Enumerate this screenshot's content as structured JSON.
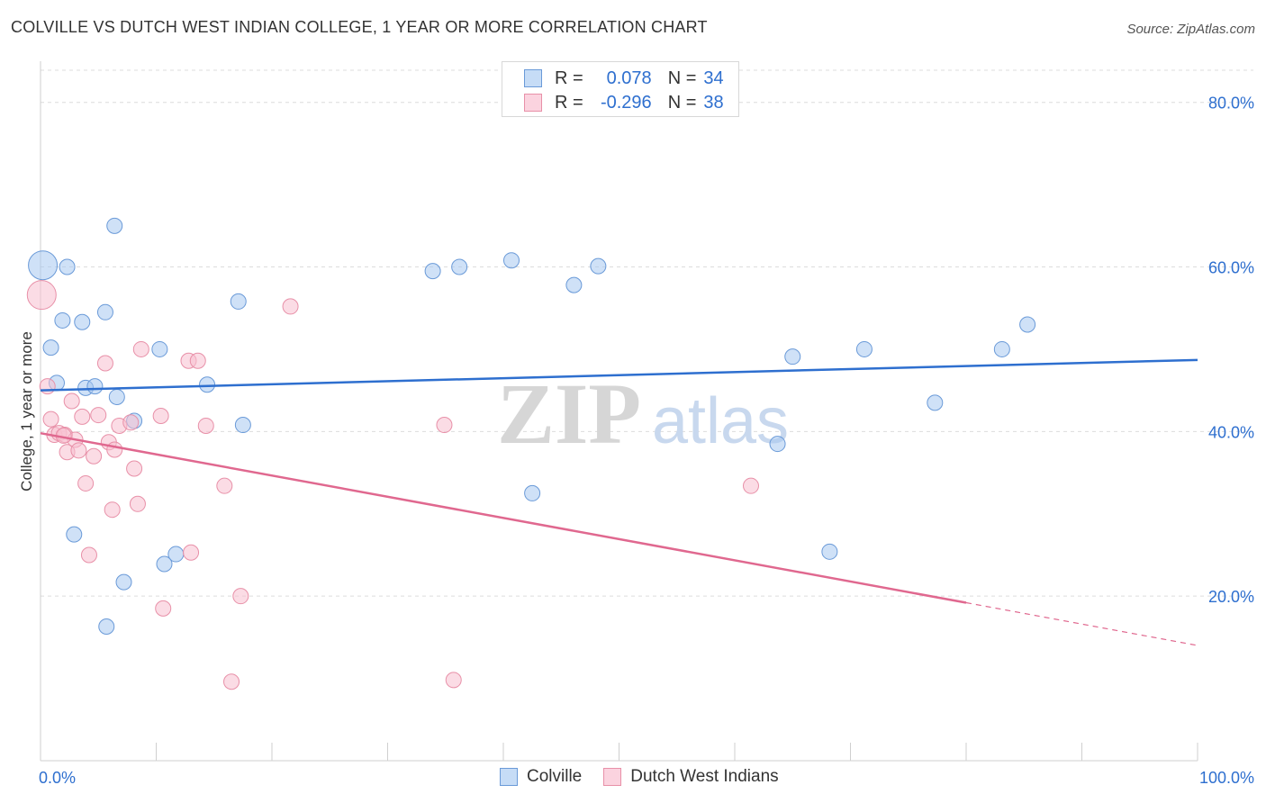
{
  "title": "COLVILLE VS DUTCH WEST INDIAN COLLEGE, 1 YEAR OR MORE CORRELATION CHART",
  "source": "Source: ZipAtlas.com",
  "watermark": {
    "zip": "ZIP",
    "atlas": "atlas"
  },
  "legend": {
    "rows": [
      {
        "r_label": "R =",
        "r_value": "0.078",
        "n_label": "N =",
        "n_value": "34"
      },
      {
        "r_label": "R =",
        "r_value": "-0.296",
        "n_label": "N =",
        "n_value": "38"
      }
    ]
  },
  "chart_data": {
    "type": "scatter",
    "title": "COLVILLE VS DUTCH WEST INDIAN COLLEGE, 1 YEAR OR MORE CORRELATION CHART",
    "xlabel": "",
    "ylabel": "College, 1 year or more",
    "xlim": [
      0,
      100
    ],
    "ylim": [
      0,
      85
    ],
    "x_tick_labels": [
      "0.0%",
      "100.0%"
    ],
    "y_ticks": [
      20,
      40,
      60,
      80
    ],
    "y_tick_labels": [
      "20.0%",
      "40.0%",
      "60.0%",
      "80.0%"
    ],
    "grid": true,
    "legend_position": "top-center",
    "series": [
      {
        "name": "Colville",
        "color": "#a8c8f0",
        "stroke": "#6a9ad8",
        "line_color": "#2e6fcf",
        "r": 0.078,
        "n": 34,
        "trend": {
          "x": [
            0,
            100
          ],
          "y": [
            45.0,
            48.7
          ]
        },
        "points": [
          {
            "x": 0.2,
            "y": 60.2,
            "big": true
          },
          {
            "x": 2.3,
            "y": 60.0
          },
          {
            "x": 6.4,
            "y": 65.0
          },
          {
            "x": 1.9,
            "y": 53.5
          },
          {
            "x": 3.6,
            "y": 53.3
          },
          {
            "x": 5.6,
            "y": 54.5
          },
          {
            "x": 0.9,
            "y": 50.2
          },
          {
            "x": 1.4,
            "y": 45.9
          },
          {
            "x": 3.9,
            "y": 45.3
          },
          {
            "x": 4.7,
            "y": 45.5
          },
          {
            "x": 6.6,
            "y": 44.2
          },
          {
            "x": 8.1,
            "y": 41.3
          },
          {
            "x": 10.3,
            "y": 50.0
          },
          {
            "x": 14.4,
            "y": 45.7
          },
          {
            "x": 17.1,
            "y": 55.8
          },
          {
            "x": 17.5,
            "y": 40.8
          },
          {
            "x": 2.9,
            "y": 27.5
          },
          {
            "x": 11.7,
            "y": 25.1
          },
          {
            "x": 10.7,
            "y": 23.9
          },
          {
            "x": 7.2,
            "y": 21.7
          },
          {
            "x": 5.7,
            "y": 16.3
          },
          {
            "x": 33.9,
            "y": 59.5
          },
          {
            "x": 36.2,
            "y": 60.0
          },
          {
            "x": 40.7,
            "y": 60.8
          },
          {
            "x": 46.1,
            "y": 57.8
          },
          {
            "x": 48.2,
            "y": 60.1
          },
          {
            "x": 42.5,
            "y": 32.5
          },
          {
            "x": 65.0,
            "y": 49.1
          },
          {
            "x": 71.2,
            "y": 50.0
          },
          {
            "x": 63.7,
            "y": 38.5
          },
          {
            "x": 68.2,
            "y": 25.4
          },
          {
            "x": 77.3,
            "y": 43.5
          },
          {
            "x": 83.1,
            "y": 50.0
          },
          {
            "x": 85.3,
            "y": 53.0
          }
        ]
      },
      {
        "name": "Dutch West Indians",
        "color": "#f8c0d0",
        "stroke": "#e890a8",
        "line_color": "#e0688f",
        "r": -0.296,
        "n": 38,
        "trend": {
          "x": [
            0,
            80
          ],
          "y": [
            39.8,
            19.2
          ]
        },
        "trend_dashed": {
          "x": [
            80,
            100
          ],
          "y": [
            19.2,
            14.0
          ]
        },
        "points": [
          {
            "x": 0.1,
            "y": 56.6,
            "big": true
          },
          {
            "x": 0.6,
            "y": 45.5
          },
          {
            "x": 0.9,
            "y": 41.5
          },
          {
            "x": 1.2,
            "y": 39.6
          },
          {
            "x": 1.6,
            "y": 39.8
          },
          {
            "x": 2.1,
            "y": 39.6
          },
          {
            "x": 2.3,
            "y": 37.5
          },
          {
            "x": 2.7,
            "y": 43.7
          },
          {
            "x": 3.0,
            "y": 39.0
          },
          {
            "x": 3.3,
            "y": 37.7
          },
          {
            "x": 3.6,
            "y": 41.8
          },
          {
            "x": 3.9,
            "y": 33.7
          },
          {
            "x": 4.2,
            "y": 25.0
          },
          {
            "x": 4.6,
            "y": 37.0
          },
          {
            "x": 5.0,
            "y": 42.0
          },
          {
            "x": 5.6,
            "y": 48.3
          },
          {
            "x": 5.9,
            "y": 38.7
          },
          {
            "x": 6.2,
            "y": 30.5
          },
          {
            "x": 6.4,
            "y": 37.8
          },
          {
            "x": 6.8,
            "y": 40.7
          },
          {
            "x": 7.8,
            "y": 41.1
          },
          {
            "x": 8.1,
            "y": 35.5
          },
          {
            "x": 8.4,
            "y": 31.2
          },
          {
            "x": 8.7,
            "y": 50.0
          },
          {
            "x": 10.4,
            "y": 41.9
          },
          {
            "x": 10.6,
            "y": 18.5
          },
          {
            "x": 12.8,
            "y": 48.6
          },
          {
            "x": 13.0,
            "y": 25.3
          },
          {
            "x": 13.6,
            "y": 48.6
          },
          {
            "x": 14.3,
            "y": 40.7
          },
          {
            "x": 15.9,
            "y": 33.4
          },
          {
            "x": 16.5,
            "y": 9.6
          },
          {
            "x": 17.3,
            "y": 20.0
          },
          {
            "x": 21.6,
            "y": 55.2
          },
          {
            "x": 34.9,
            "y": 40.8
          },
          {
            "x": 35.7,
            "y": 9.8
          },
          {
            "x": 61.4,
            "y": 33.4
          },
          {
            "x": 2.0,
            "y": 39.5
          }
        ]
      }
    ]
  }
}
